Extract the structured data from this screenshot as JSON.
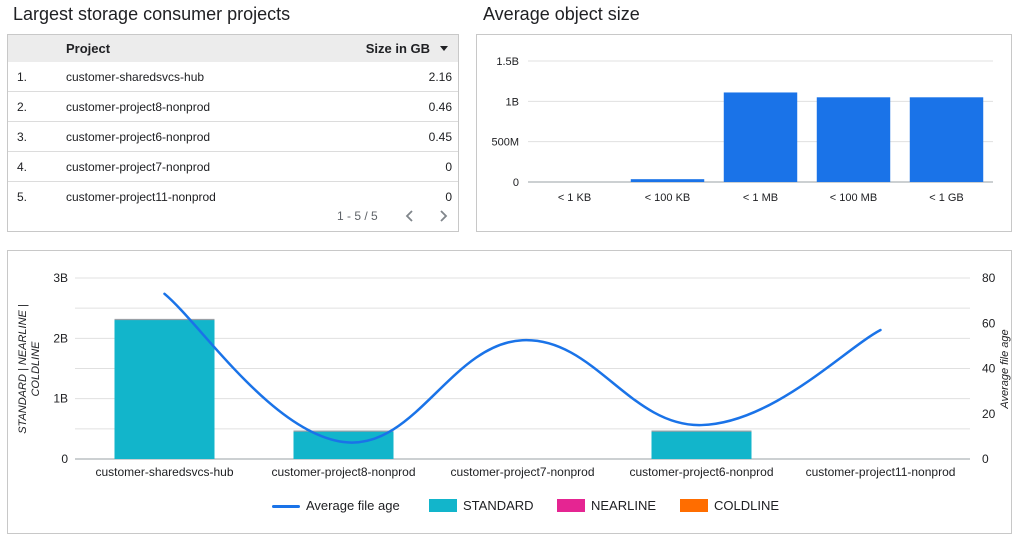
{
  "projects_panel": {
    "title": "Largest storage consumer projects",
    "columns": {
      "project": "Project",
      "size": "Size in GB"
    },
    "rows": [
      {
        "index": "1.",
        "project": "customer-sharedsvcs-hub",
        "size": "2.16"
      },
      {
        "index": "2.",
        "project": "customer-project8-nonprod",
        "size": "0.46"
      },
      {
        "index": "3.",
        "project": "customer-project6-nonprod",
        "size": "0.45"
      },
      {
        "index": "4.",
        "project": "customer-project7-nonprod",
        "size": "0"
      },
      {
        "index": "5.",
        "project": "customer-project11-nonprod",
        "size": "0"
      }
    ],
    "pager_text": "1 - 5 / 5",
    "sort_icon": "sort-descending-icon",
    "prev_icon": "chevron-left-icon",
    "next_icon": "chevron-right-icon"
  },
  "object_size_panel": {
    "title": "Average object size"
  },
  "chart_data": [
    {
      "type": "bar",
      "title": "Average object size",
      "categories": [
        "< 1 KB",
        "< 100 KB",
        "< 1 MB",
        "< 100 MB",
        "< 1 GB"
      ],
      "values": [
        0,
        35000000,
        1110000000,
        1050000000,
        1050000000
      ],
      "ylim": [
        0,
        1500000000
      ],
      "yticks": [
        0,
        500000000,
        1000000000,
        1500000000
      ],
      "ytick_labels": [
        "0",
        "500M",
        "1B",
        "1.5B"
      ],
      "grid": true,
      "colors": {
        "bar": "#1a73e8"
      }
    },
    {
      "type": "bar",
      "stacked": true,
      "categories": [
        "customer-sharedsvcs-hub",
        "customer-project8-nonprod",
        "customer-project7-nonprod",
        "customer-project6-nonprod",
        "customer-project11-nonprod"
      ],
      "series": [
        {
          "name": "STANDARD",
          "values": [
            2320000000,
            470000000,
            0,
            470000000,
            0
          ],
          "color": "#12b5cb"
        },
        {
          "name": "NEARLINE",
          "values": [
            0,
            0,
            0,
            0,
            0
          ],
          "color": "#e52592"
        },
        {
          "name": "COLDLINE",
          "values": [
            0,
            0,
            0,
            0,
            0
          ],
          "color": "#ff6d00"
        }
      ],
      "line_series": {
        "name": "Average file age",
        "values": [
          73,
          7.5,
          52.5,
          15,
          57
        ],
        "color": "#1a73e8",
        "axis": "right"
      },
      "ylabel": "STANDARD | NEARLINE | COLDLINE",
      "ylabel_lines": [
        "STANDARD | NEARLINE |",
        "COLDLINE"
      ],
      "y2label": "Average file age",
      "ylim": [
        0,
        3000000000
      ],
      "yticks": [
        0,
        1000000000,
        2000000000,
        3000000000
      ],
      "ytick_labels": [
        "0",
        "1B",
        "2B",
        "3B"
      ],
      "y2lim": [
        0,
        80
      ],
      "y2ticks": [
        0,
        20,
        40,
        60,
        80
      ],
      "grid": true,
      "legend_position": "bottom",
      "legend": [
        "Average file age",
        "STANDARD",
        "NEARLINE",
        "COLDLINE"
      ]
    }
  ]
}
